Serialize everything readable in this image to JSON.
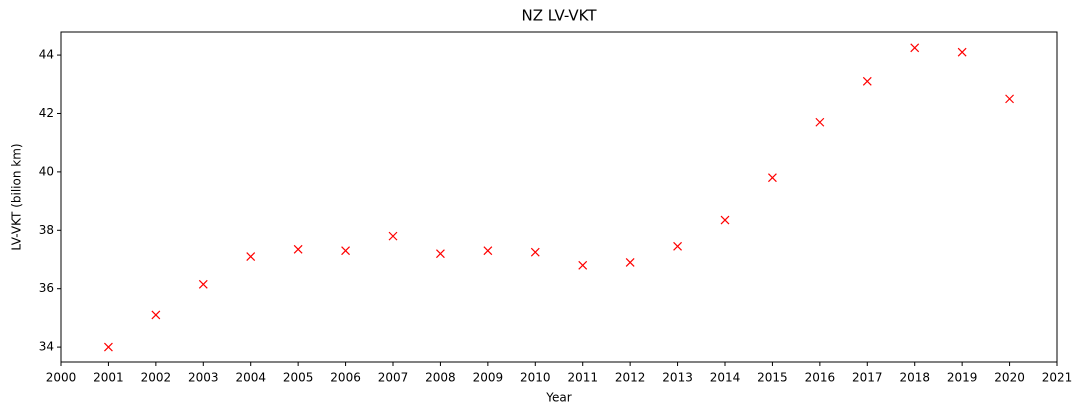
{
  "chart_data": {
    "type": "scatter",
    "title": "NZ LV-VKT",
    "x_label": "Year",
    "y_label": "LV-VKT (bilion km)",
    "series": [
      {
        "color": "#ff0000",
        "marker": "x",
        "x": [
          2001,
          2002,
          2003,
          2004,
          2005,
          2006,
          2007,
          2008,
          2009,
          2010,
          2011,
          2012,
          2013,
          2014,
          2015,
          2016,
          2017,
          2018,
          2019,
          2020
        ],
        "values": [
          34.0,
          35.1,
          36.15,
          37.1,
          37.35,
          37.3,
          37.8,
          37.2,
          37.3,
          37.25,
          36.8,
          36.9,
          37.45,
          38.35,
          39.8,
          41.7,
          43.1,
          44.25,
          44.1,
          42.5
        ]
      }
    ],
    "xlim": [
      2000,
      2021
    ],
    "xticks": [
      2000,
      2001,
      2002,
      2003,
      2004,
      2005,
      2006,
      2007,
      2008,
      2009,
      2010,
      2011,
      2012,
      2013,
      2014,
      2015,
      2016,
      2017,
      2018,
      2019,
      2020,
      2021
    ],
    "ylim": [
      33.49,
      44.79
    ],
    "yticks": [
      34,
      36,
      38,
      40,
      42,
      44
    ],
    "grid": false
  }
}
